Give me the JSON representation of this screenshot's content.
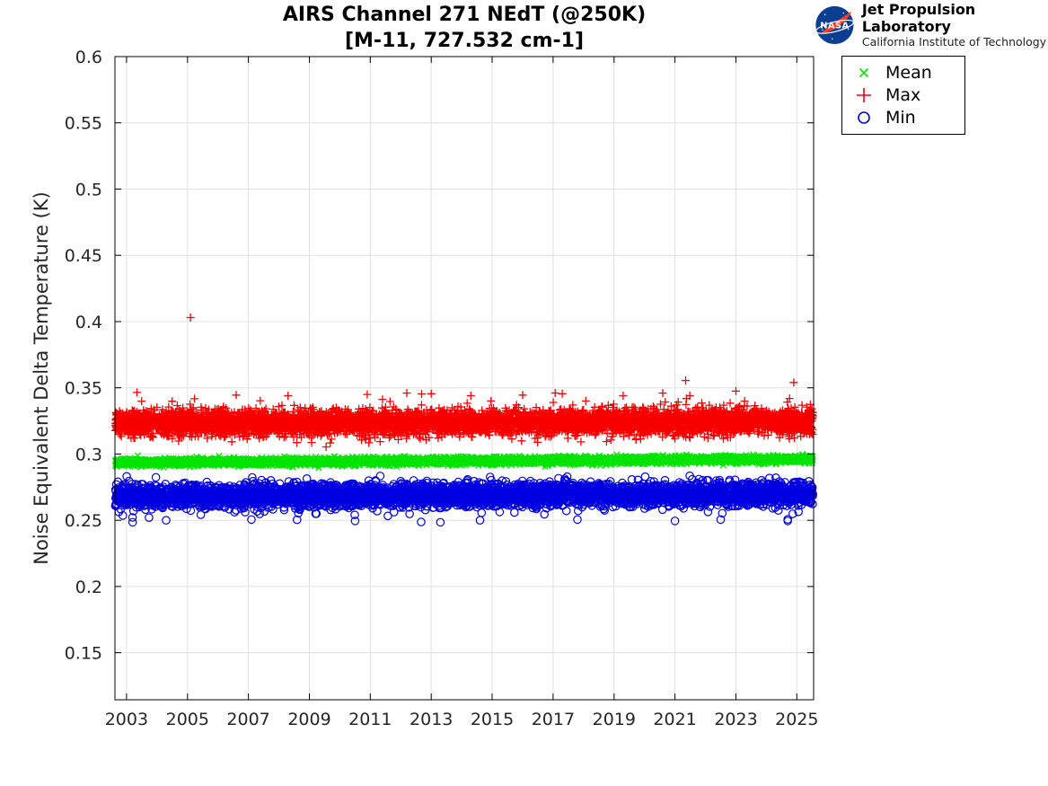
{
  "page": {
    "background": "#ffffff"
  },
  "branding": {
    "org_name": "Jet Propulsion Laboratory",
    "org_sub": "California Institute of Technology",
    "logo": "nasa-meatball-insignia",
    "logo_text": "NASA",
    "logo_colors": {
      "blue": "#0b3d91",
      "red": "#fc3d21",
      "white": "#ffffff"
    }
  },
  "chart_data": {
    "type": "scatter",
    "title": "AIRS Channel 271 NEdT (@250K)",
    "subtitle": "[M-11, 727.532 cm-1]",
    "xlabel": "",
    "ylabel": "Noise Equivalent Delta Temperature (K)",
    "xlim": [
      2002.62,
      2025.55
    ],
    "ylim": [
      0.1145,
      0.6
    ],
    "grid": true,
    "grid_color": "#e0e0e0",
    "axis_color": "#000000",
    "tick_label_color": "#262626",
    "legend_position": "outside-top-right",
    "x_ticks": {
      "values": [
        2003,
        2005,
        2007,
        2009,
        2011,
        2013,
        2015,
        2017,
        2019,
        2021,
        2023,
        2025
      ],
      "labels": [
        "2003",
        "2005",
        "2007",
        "2009",
        "2011",
        "2013",
        "2015",
        "2017",
        "2019",
        "2021",
        "2023",
        "2025"
      ]
    },
    "y_ticks": {
      "values": [
        0.15,
        0.2,
        0.25,
        0.3,
        0.35,
        0.4,
        0.45,
        0.5,
        0.55,
        0.6
      ],
      "labels": [
        "0.15",
        "0.2",
        "0.25",
        "0.3",
        "0.35",
        "0.4",
        "0.45",
        "0.5",
        "0.55",
        "0.6"
      ]
    },
    "series": [
      {
        "name": "Mean",
        "marker": "x",
        "color": "#00e400",
        "n": 6000,
        "x_start": 2002.63,
        "x_end": 2025.53,
        "band": {
          "center_start": 0.2936,
          "center_end": 0.2961,
          "sigma": 0.00135
        },
        "outliers": []
      },
      {
        "name": "Max",
        "marker": "+",
        "color": "#f80000",
        "n": 6200,
        "x_start": 2002.63,
        "x_end": 2025.53,
        "band": {
          "center_start": 0.3233,
          "center_end": 0.3246,
          "sigma": 0.0046,
          "tail_prob": 0.013,
          "tail_dir": 1,
          "tail_min": 0.004,
          "tail_max": 0.016,
          "tail2_prob": 0.005,
          "tail2_dir": -1,
          "tail2_min": 0.002,
          "tail2_max": 0.007
        },
        "outliers": [
          [
            2005.1,
            0.403
          ],
          [
            2006.6,
            0.3445
          ],
          [
            2008.3,
            0.344
          ],
          [
            2010.9,
            0.345
          ],
          [
            2012.2,
            0.346
          ],
          [
            2013.0,
            0.3455
          ],
          [
            2014.3,
            0.344
          ],
          [
            2016.0,
            0.3445
          ],
          [
            2017.3,
            0.3455
          ],
          [
            2019.3,
            0.344
          ],
          [
            2020.6,
            0.346
          ],
          [
            2021.35,
            0.3555
          ],
          [
            2023.0,
            0.3475
          ],
          [
            2024.9,
            0.354
          ]
        ]
      },
      {
        "name": "Min",
        "marker": "o",
        "color": "#0000e0",
        "n": 5400,
        "x_start": 2002.63,
        "x_end": 2025.53,
        "band": {
          "center_start": 0.2682,
          "center_end": 0.2702,
          "sigma": 0.00425,
          "tail_prob": 0.012,
          "tail_dir": -1,
          "tail_min": 0.003,
          "tail_max": 0.013
        },
        "outliers": [
          [
            2003.2,
            0.2485
          ],
          [
            2004.3,
            0.25
          ],
          [
            2007.1,
            0.2505
          ],
          [
            2010.5,
            0.2495
          ],
          [
            2013.3,
            0.2485
          ],
          [
            2014.6,
            0.25
          ],
          [
            2017.8,
            0.2505
          ],
          [
            2021.0,
            0.2495
          ],
          [
            2022.5,
            0.2505
          ],
          [
            2024.7,
            0.2495
          ]
        ]
      }
    ],
    "notes": "Dense noise bands of ~daily granule statistics, 2002.6-2025.5; values in Kelvin. Max band ~0.31-0.34 K, Mean band ~0.290-0.298 K (slight upward drift), Min band ~0.257-0.281 K with sporadic dips to ~0.248 K; single Max outlier 0.403 K near 2005.1."
  }
}
